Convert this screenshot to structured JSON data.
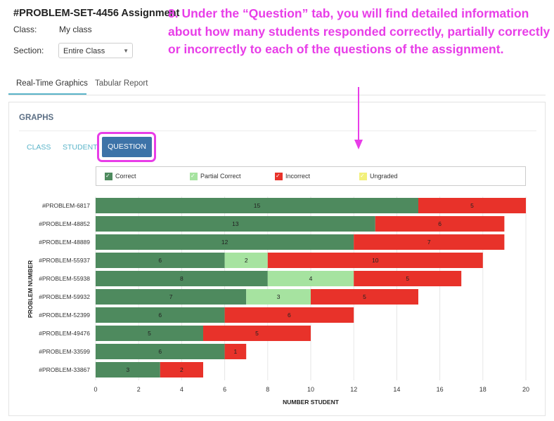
{
  "header": {
    "title": "#PROBLEM-SET-4456 Assignment",
    "class_label": "Class:",
    "class_value": "My class",
    "section_label": "Section:",
    "section_value": "Entire Class"
  },
  "instruction": "8. Under the “Question” tab, you will find detailed information about how many students responded correctly, partially correctly or incorrectly to each of the questions of the assignment.",
  "tabs": [
    {
      "label": "Real-Time Graphics",
      "active": true
    },
    {
      "label": "Tabular Report",
      "active": false
    }
  ],
  "panel": {
    "heading": "GRAPHS",
    "subtabs": [
      "CLASS",
      "STUDENT",
      "QUESTION"
    ],
    "active_subtab": "QUESTION"
  },
  "colors": {
    "correct": "#4e8a5e",
    "partial": "#a6e3a0",
    "incorrect": "#e8322a",
    "ungraded": "#f2f07a",
    "accent": "#e83de8",
    "button": "#3d73a8"
  },
  "legend": [
    {
      "label": "Correct",
      "color": "#4e8a5e",
      "icon": "check-icon"
    },
    {
      "label": "Partial Correct",
      "color": "#a6e3a0",
      "icon": "check-icon"
    },
    {
      "label": "Incorrect",
      "color": "#e8322a",
      "icon": "check-icon"
    },
    {
      "label": "Ungraded",
      "color": "#f2f07a",
      "icon": "check-icon"
    }
  ],
  "chart_data": {
    "type": "bar",
    "orientation": "horizontal",
    "stacked": true,
    "xlabel": "NUMBER STUDENT",
    "ylabel": "PROBLEM NUMBER",
    "xlim": [
      0,
      20
    ],
    "xticks": [
      0,
      2,
      4,
      6,
      8,
      10,
      12,
      14,
      16,
      18,
      20
    ],
    "categories": [
      "#PROBLEM-6817",
      "#PROBLEM-48852",
      "#PROBLEM-48889",
      "#PROBLEM-55937",
      "#PROBLEM-55938",
      "#PROBLEM-59932",
      "#PROBLEM-52399",
      "#PROBLEM-49476",
      "#PROBLEM-33599",
      "#PROBLEM-33867"
    ],
    "series": [
      {
        "name": "Correct",
        "values": [
          15,
          13,
          12,
          6,
          8,
          7,
          6,
          5,
          6,
          3
        ]
      },
      {
        "name": "Partial Correct",
        "values": [
          0,
          0,
          0,
          2,
          4,
          3,
          0,
          0,
          0,
          0
        ]
      },
      {
        "name": "Incorrect",
        "values": [
          5,
          6,
          7,
          10,
          5,
          5,
          6,
          5,
          1,
          2
        ]
      },
      {
        "name": "Ungraded",
        "values": [
          0,
          0,
          0,
          0,
          0,
          0,
          0,
          0,
          0,
          0
        ]
      }
    ],
    "grid": true
  }
}
